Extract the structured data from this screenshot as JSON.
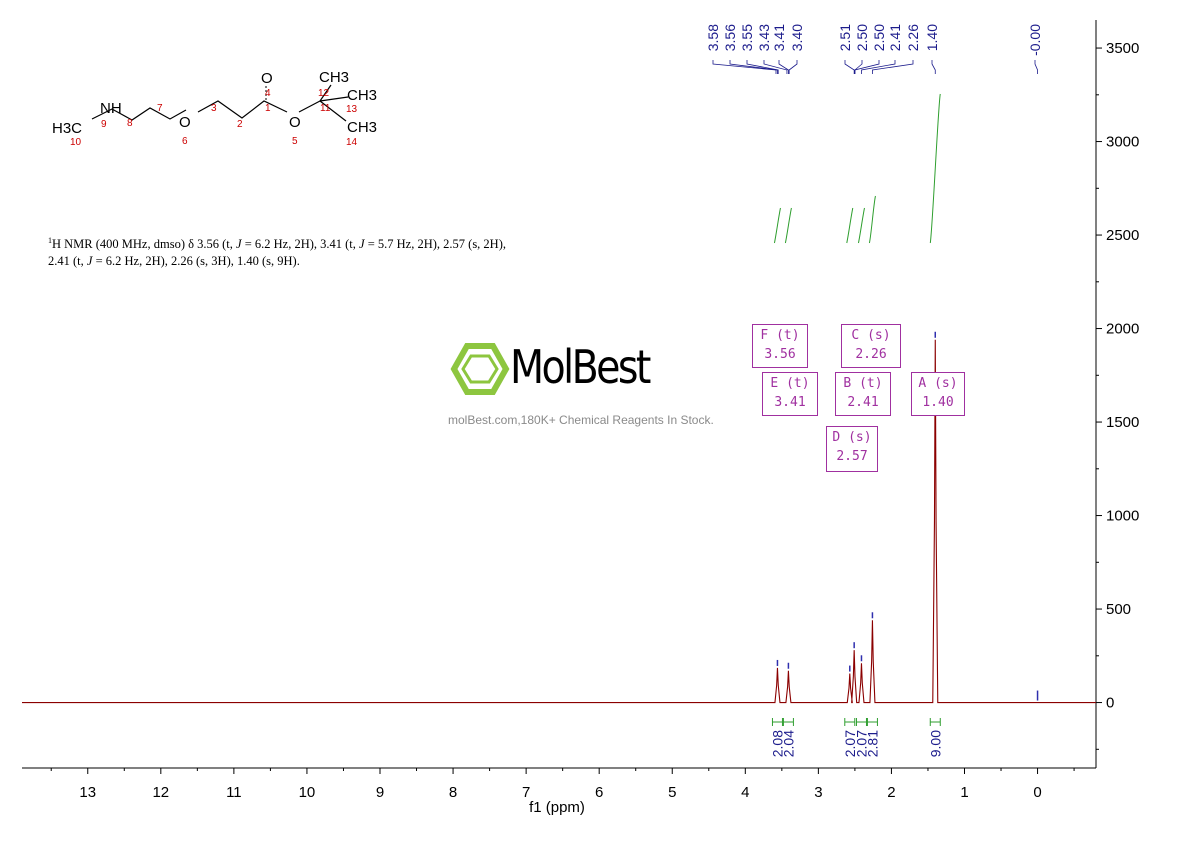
{
  "chart_data": {
    "type": "line",
    "xlabel": "f1 (ppm)",
    "ylabel": "",
    "xlim": [
      13.9,
      -0.8
    ],
    "ylim": [
      -350,
      3650
    ],
    "x_ticks": [
      13,
      12,
      11,
      10,
      9,
      8,
      7,
      6,
      5,
      4,
      3,
      2,
      1,
      0
    ],
    "x_tick_labels": [
      "13",
      "12",
      "11",
      "10",
      "9",
      "8",
      "7",
      "6",
      "5",
      "4",
      "3",
      "2",
      "1",
      "0"
    ],
    "y_ticks": [
      0,
      500,
      1000,
      1500,
      2000,
      2500,
      3000,
      3500
    ],
    "y_tick_labels": [
      "0",
      "500",
      "1000",
      "1500",
      "2000",
      "2500",
      "3000",
      "3500"
    ],
    "grid": false,
    "peaks": [
      {
        "ppm": 3.56,
        "height": 185
      },
      {
        "ppm": 3.41,
        "height": 170
      },
      {
        "ppm": 2.57,
        "height": 155
      },
      {
        "ppm": 2.51,
        "height": 280
      },
      {
        "ppm": 2.41,
        "height": 210
      },
      {
        "ppm": 2.26,
        "height": 440
      },
      {
        "ppm": 1.4,
        "height": 1940
      }
    ],
    "peak_labels": [
      "3.58",
      "3.56",
      "3.55",
      "3.43",
      "3.41",
      "3.40",
      "2.51",
      "2.50",
      "2.50",
      "2.41",
      "2.26",
      "1.40",
      "-0.00"
    ],
    "integrals": [
      {
        "ppm": 3.56,
        "value": "2.08"
      },
      {
        "ppm": 3.41,
        "value": "2.04"
      },
      {
        "ppm": 2.57,
        "value": "2.07"
      },
      {
        "ppm": 2.41,
        "value": "2.07"
      },
      {
        "ppm": 2.26,
        "value": "2.81"
      },
      {
        "ppm": 1.4,
        "value": "9.00"
      }
    ],
    "multiplets": [
      {
        "letter": "F",
        "mult": "(t)",
        "shift": "3.56"
      },
      {
        "letter": "C",
        "mult": "(s)",
        "shift": "2.26"
      },
      {
        "letter": "E",
        "mult": "(t)",
        "shift": "3.41"
      },
      {
        "letter": "B",
        "mult": "(t)",
        "shift": "2.41"
      },
      {
        "letter": "A",
        "mult": "(s)",
        "shift": "1.40"
      },
      {
        "letter": "D",
        "mult": "(s)",
        "shift": "2.57"
      }
    ],
    "colors": {
      "spectrum": "#8b0000",
      "integral": "#2e9e2e",
      "peak_label": "#1c1c8c",
      "multiplet": "#a030a0"
    }
  },
  "description": {
    "nucleus_sup": "1",
    "part1": "H NMR (400 MHz, dmso) δ 3.56 (t, ",
    "J": "J",
    "part2": " = 6.2 Hz, 2H), 3.41 (t, ",
    "part3": " = 5.7 Hz, 2H), 2.57 (s, 2H),",
    "part4": "2.41 (t, ",
    "part5": " = 6.2 Hz, 2H), 2.26 (s, 3H), 1.40 (s, 9H)."
  },
  "structure": {
    "H3C": "H3C",
    "NH": "NH",
    "O6": "O",
    "O5": "O",
    "O4": "O",
    "CH3_12": "CH3",
    "CH3_13": "CH3",
    "CH3_14": "CH3",
    "numbers": [
      "10",
      "9",
      "8",
      "7",
      "3",
      "2",
      "1",
      "4",
      "6",
      "5",
      "11",
      "12",
      "13",
      "14"
    ]
  },
  "watermark": {
    "brand": "MolBest",
    "tagline": "molBest.com,180K+ Chemical Reagents In Stock."
  }
}
